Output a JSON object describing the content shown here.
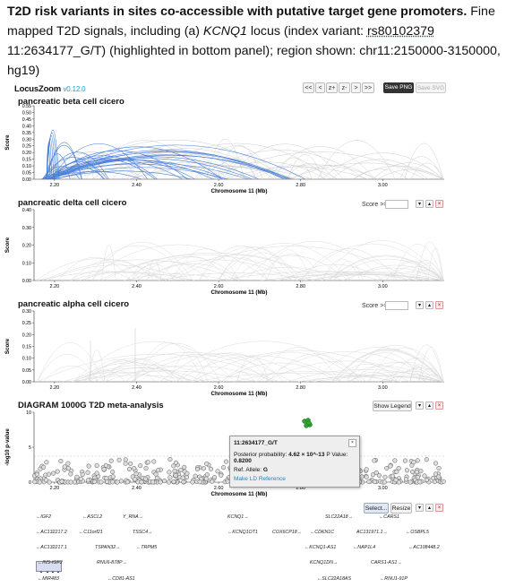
{
  "caption": {
    "bold": "T2D risk variants in sites co-accessible with putative target gene promoters.",
    "part1": " Fine mapped T2D signals, including (a) ",
    "locus": "KCNQ1",
    "part2": " locus (index variant: ",
    "variant": "rs80102379",
    "part3": " 11:2634177_G/T) (highlighted in bottom panel); region shown: chr11:2150000-3150000, hg19)"
  },
  "header": {
    "brand": "LocusZoom",
    "version": "v0.12.0",
    "nav": [
      "<<",
      "<",
      "z+",
      "z-",
      ">",
      ">>"
    ],
    "save_png": "Save PNG",
    "save_svg": "Save SVG"
  },
  "panels": [
    {
      "title": "pancreatic beta cell cicero",
      "ylabel": "Score",
      "yticks": [
        "0.55",
        "0.50",
        "0.45",
        "0.40",
        "0.35",
        "0.30",
        "0.25",
        "0.20",
        "0.15",
        "0.10",
        "0.05",
        "0.00"
      ],
      "xticks": [
        "2.20",
        "2.40",
        "2.60",
        "2.80",
        "3.00"
      ],
      "xlabel": "Chromosome 11 (Mb)",
      "highlight_color": "#4a7fd8"
    },
    {
      "title": "pancreatic delta cell cicero",
      "ylabel": "Score",
      "yticks": [
        "0.40",
        "0.30",
        "0.20",
        "0.10",
        "0.00"
      ],
      "xticks": [
        "2.20",
        "2.40",
        "2.60",
        "2.80",
        "3.00"
      ],
      "xlabel": "Chromosome 11 (Mb)",
      "score_label": "Score >="
    },
    {
      "title": "pancreatic alpha cell cicero",
      "ylabel": "Score",
      "yticks": [
        "0.30",
        "0.25",
        "0.20",
        "0.15",
        "0.10",
        "0.05",
        "0.00"
      ],
      "xticks": [
        "2.20",
        "2.40",
        "2.60",
        "2.80",
        "3.00"
      ],
      "xlabel": "Chromosome 11 (Mb)",
      "score_label": "Score >="
    },
    {
      "title": "DIAGRAM 1000G T2D meta-analysis",
      "ylabel": "-log10 p-value",
      "yticks": [
        "10",
        "5",
        "0"
      ],
      "xticks": [
        "2.20",
        "2.40",
        "2.60",
        "2.80",
        "3.00"
      ],
      "xlabel": "Chromosome 11 (Mb)",
      "show_legend": "Show Legend"
    }
  ],
  "controls": {
    "down": "▾",
    "up": "▴",
    "close": "×"
  },
  "tooltip": {
    "title": "11:2634177_G/T",
    "posterior_label": "Posterior probability: ",
    "posterior_value": "4.62 × 10^-13",
    "pvalue_label": " P Value: ",
    "pvalue_value": "0.8200",
    "ref_label": "Ref. Allele: ",
    "ref_value": "G",
    "link": "Make LD Reference",
    "close": "×"
  },
  "genes_toolbar": {
    "select": "Select...",
    "resize": "Resize"
  },
  "genes": [
    [
      "←IGF2",
      "←ASCL2",
      "Y_RNA→",
      "KCNQ1→",
      "SLC22A18→",
      "←CARS1"
    ],
    [
      "←AC132217.2",
      "←C11orf21",
      "TSSC4→",
      "←KCNQ1OT1",
      "COX6CP18→",
      "←CDKN1C",
      "AC131971.1→",
      "←OSBPL5"
    ],
    [
      "←AC132217.1",
      "TSPAN32→",
      "←TRPM5",
      "←KCNQ1-AS1",
      "←NAP1L4",
      "←AC108448.2"
    ],
    [
      "←INS-IGF2",
      "RNU6-878P→",
      "KCNQ1DN→",
      "CARS1-AS1→"
    ],
    [
      "←MIR483",
      "←CD81-AS1",
      "←SLC22A18AS",
      "←RNU1-91P"
    ]
  ]
}
